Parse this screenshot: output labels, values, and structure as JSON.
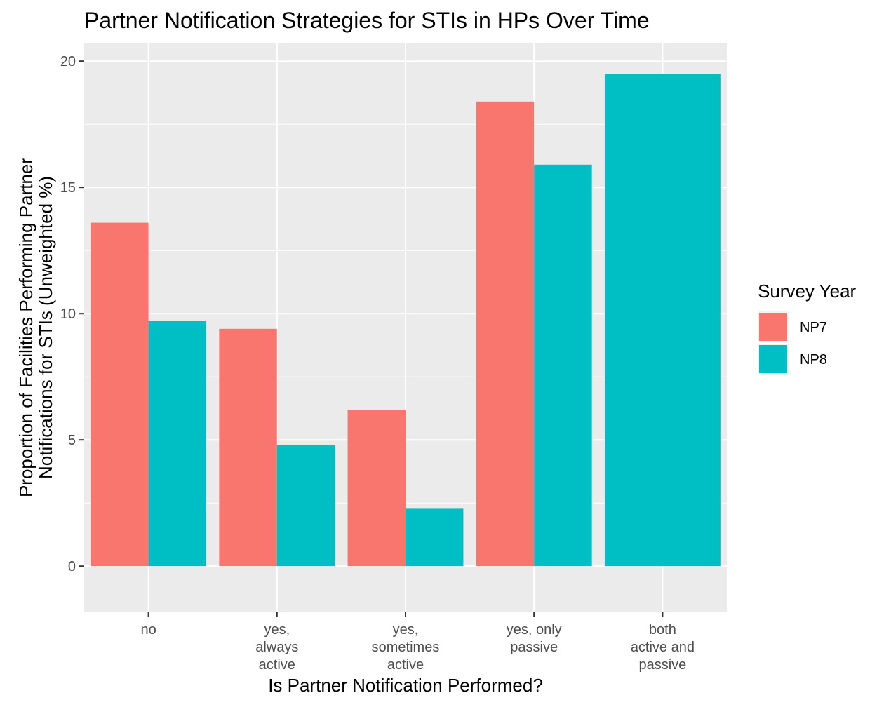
{
  "chart_data": {
    "type": "bar",
    "title": "Partner Notification Strategies for STIs in HPs Over Time",
    "xlabel": "Is Partner Notification Performed?",
    "ylabel": [
      "Proportion of Facilities Performing Partner",
      "Notifications for STIs (Unweighted %)"
    ],
    "categories": [
      [
        "no"
      ],
      [
        "yes,",
        "always",
        "active"
      ],
      [
        "yes,",
        "sometimes",
        "active"
      ],
      [
        "yes, only",
        "passive"
      ],
      [
        "both",
        "active and",
        "passive"
      ]
    ],
    "series": [
      {
        "name": "NP7",
        "color": "#F8766D",
        "values": [
          13.6,
          9.4,
          6.2,
          18.4,
          null
        ]
      },
      {
        "name": "NP8",
        "color": "#00BFC4",
        "values": [
          9.7,
          4.8,
          2.3,
          15.9,
          19.5
        ]
      }
    ],
    "ylim": [
      -1.8,
      20.7
    ],
    "yticks": [
      0,
      5,
      10,
      15,
      20
    ],
    "grid": true,
    "legend": {
      "title": "Survey Year",
      "position": "right"
    }
  }
}
